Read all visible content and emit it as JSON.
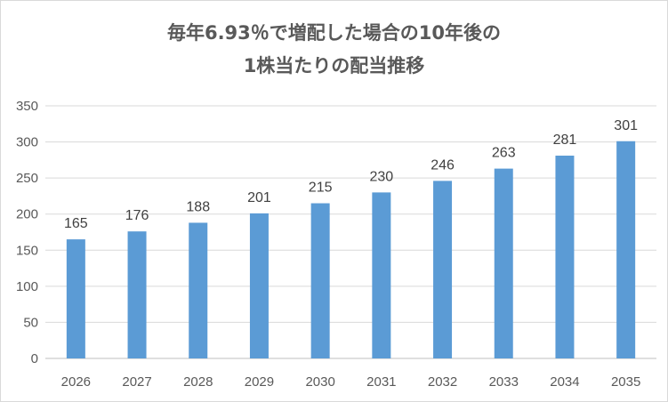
{
  "chart_data": {
    "type": "bar",
    "title_lines": [
      "毎年6.93％で増配した場合の10年後の",
      "1株当たりの配当推移"
    ],
    "categories": [
      "2026",
      "2027",
      "2028",
      "2029",
      "2030",
      "2031",
      "2032",
      "2033",
      "2034",
      "2035"
    ],
    "values": [
      165,
      176,
      188,
      201,
      215,
      230,
      246,
      263,
      281,
      301
    ],
    "data_labels": [
      "165",
      "176",
      "188",
      "201",
      "215",
      "230",
      "246",
      "263",
      "281",
      "301"
    ],
    "y_ticks": [
      "0",
      "50",
      "100",
      "150",
      "200",
      "250",
      "300",
      "350"
    ],
    "ylim": [
      0,
      350
    ],
    "grid": true,
    "legend": "none",
    "colors": {
      "bar": "#5b9bd5",
      "grid": "#d9d9d9",
      "title": "#595959",
      "axis_text": "#595959"
    }
  }
}
